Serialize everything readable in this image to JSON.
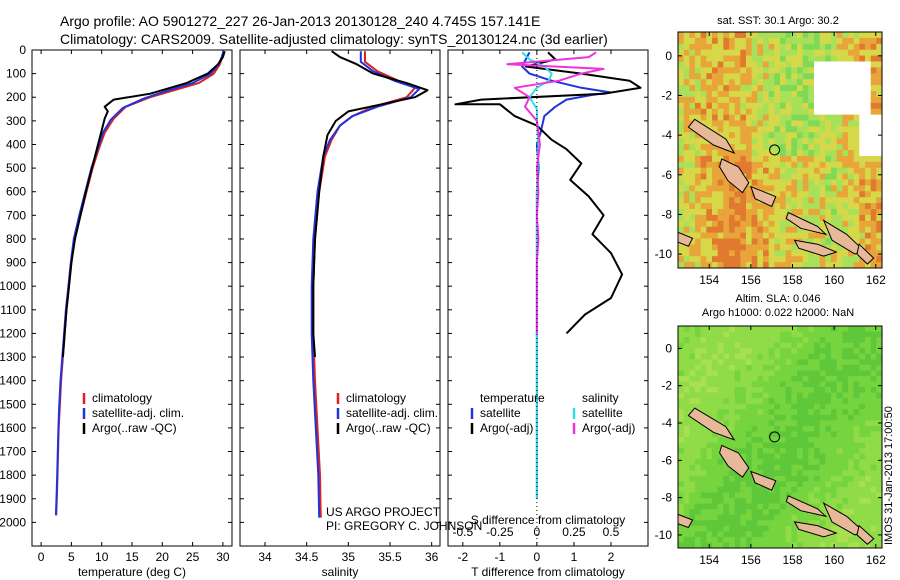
{
  "header": {
    "line1": "Argo profile: AO 5901272_227 26-Jan-2013 20130128_240 4.745S 157.141E",
    "line2": "Climatology: CARS2009. Satellite-adjusted climatology: synTS_20130124.nc (3d earlier)"
  },
  "credits": {
    "line1": "US ARGO PROJECT",
    "line2": "PI: GREGORY C. JOHNSON"
  },
  "timestamp": "IMOS 31-Jan-2013 17:00:50",
  "colors": {
    "climatology": "#dd2222",
    "satellite": "#2233dd",
    "argo": "#000000",
    "sal_satellite": "#33dde8",
    "sal_argo": "#ee33dd",
    "land": "#e8b89a",
    "marker": "#000000"
  },
  "chart_data": [
    {
      "type": "line",
      "id": "temperature",
      "xlabel": "temperature (deg C)",
      "ylabel": "",
      "xlim": [
        -1.5,
        31.5
      ],
      "ylim": [
        2100,
        0
      ],
      "xticks": [
        0,
        5,
        10,
        15,
        20,
        25,
        30
      ],
      "yticks": [
        0,
        100,
        200,
        300,
        400,
        500,
        600,
        700,
        800,
        900,
        1000,
        1100,
        1200,
        1300,
        1400,
        1500,
        1600,
        1700,
        1800,
        1900,
        2000
      ],
      "legend": [
        "climatology",
        "satellite-adj. clim.",
        "Argo(..raw -QC)"
      ],
      "series": [
        {
          "name": "climatology",
          "points": [
            [
              30.2,
              5
            ],
            [
              29.9,
              30
            ],
            [
              29.5,
              60
            ],
            [
              28.5,
              100
            ],
            [
              26,
              140
            ],
            [
              22,
              170
            ],
            [
              18,
              200
            ],
            [
              14,
              240
            ],
            [
              12,
              290
            ],
            [
              10.5,
              350
            ],
            [
              9.5,
              420
            ],
            [
              8.5,
              500
            ],
            [
              7.5,
              600
            ],
            [
              6.5,
              700
            ],
            [
              5.5,
              800
            ],
            [
              5,
              900
            ],
            [
              4.6,
              1000
            ],
            [
              4.2,
              1100
            ],
            [
              3.9,
              1200
            ],
            [
              3.6,
              1300
            ],
            [
              3.3,
              1400
            ],
            [
              3.1,
              1500
            ],
            [
              2.9,
              1600
            ],
            [
              2.8,
              1700
            ],
            [
              2.7,
              1800
            ],
            [
              2.6,
              1900
            ],
            [
              2.5,
              1970
            ]
          ]
        },
        {
          "name": "satellite-adj. clim.",
          "points": [
            [
              30.1,
              5
            ],
            [
              29.8,
              30
            ],
            [
              29.3,
              60
            ],
            [
              28,
              100
            ],
            [
              25,
              140
            ],
            [
              20.5,
              175
            ],
            [
              17,
              205
            ],
            [
              13.5,
              245
            ],
            [
              11.5,
              295
            ],
            [
              10.2,
              350
            ],
            [
              9.3,
              420
            ],
            [
              8.3,
              500
            ],
            [
              7.3,
              600
            ],
            [
              6.3,
              700
            ],
            [
              5.4,
              800
            ],
            [
              4.9,
              900
            ],
            [
              4.5,
              1000
            ],
            [
              4.1,
              1100
            ],
            [
              3.8,
              1200
            ],
            [
              3.5,
              1300
            ],
            [
              3.2,
              1400
            ],
            [
              3,
              1500
            ],
            [
              2.85,
              1600
            ],
            [
              2.75,
              1700
            ],
            [
              2.65,
              1800
            ],
            [
              2.55,
              1900
            ],
            [
              2.45,
              1970
            ]
          ]
        },
        {
          "name": "Argo(..raw -QC)",
          "points": [
            [
              30.3,
              5
            ],
            [
              30,
              30
            ],
            [
              29.2,
              60
            ],
            [
              27.5,
              100
            ],
            [
              24,
              140
            ],
            [
              18,
              185
            ],
            [
              12,
              210
            ],
            [
              10.5,
              240
            ],
            [
              11,
              260
            ],
            [
              10.5,
              290
            ],
            [
              9.8,
              360
            ],
            [
              9.2,
              420
            ],
            [
              8.4,
              500
            ],
            [
              7.4,
              600
            ],
            [
              6.5,
              700
            ],
            [
              5.6,
              800
            ],
            [
              5,
              900
            ],
            [
              4.6,
              1000
            ],
            [
              4.2,
              1100
            ],
            [
              3.9,
              1200
            ],
            [
              3.6,
              1300
            ]
          ]
        }
      ]
    },
    {
      "type": "line",
      "id": "salinity",
      "xlabel": "salinity",
      "ylabel": "",
      "xlim": [
        33.7,
        36.1
      ],
      "ylim": [
        2100,
        0
      ],
      "xticks": [
        34,
        34.5,
        35,
        35.5,
        36
      ],
      "xtick_labels": [
        "34",
        "34.5",
        "35",
        "35.5",
        "36"
      ],
      "legend": [
        "climatology",
        "satellite-adj. clim.",
        "Argo(..raw -QC)"
      ],
      "series": [
        {
          "name": "climatology",
          "points": [
            [
              35.2,
              5
            ],
            [
              35.2,
              50
            ],
            [
              35.35,
              90
            ],
            [
              35.6,
              130
            ],
            [
              35.8,
              160
            ],
            [
              35.7,
              200
            ],
            [
              35.3,
              240
            ],
            [
              35.05,
              280
            ],
            [
              34.9,
              320
            ],
            [
              34.8,
              380
            ],
            [
              34.72,
              450
            ],
            [
              34.65,
              600
            ],
            [
              34.6,
              800
            ],
            [
              34.58,
              1000
            ],
            [
              34.58,
              1200
            ],
            [
              34.6,
              1400
            ],
            [
              34.63,
              1600
            ],
            [
              34.66,
              1800
            ],
            [
              34.67,
              1980
            ]
          ]
        },
        {
          "name": "satellite-adj. clim.",
          "points": [
            [
              35.15,
              5
            ],
            [
              35.15,
              50
            ],
            [
              35.3,
              90
            ],
            [
              35.55,
              130
            ],
            [
              35.85,
              165
            ],
            [
              35.75,
              200
            ],
            [
              35.35,
              240
            ],
            [
              35.05,
              280
            ],
            [
              34.9,
              320
            ],
            [
              34.78,
              380
            ],
            [
              34.7,
              450
            ],
            [
              34.63,
              600
            ],
            [
              34.58,
              800
            ],
            [
              34.56,
              1000
            ],
            [
              34.56,
              1200
            ],
            [
              34.58,
              1400
            ],
            [
              34.61,
              1600
            ],
            [
              34.64,
              1800
            ],
            [
              34.65,
              1980
            ]
          ]
        },
        {
          "name": "Argo(..raw -QC)",
          "points": [
            [
              34.8,
              5
            ],
            [
              34.9,
              30
            ],
            [
              35.1,
              60
            ],
            [
              35.3,
              100
            ],
            [
              35.7,
              140
            ],
            [
              35.95,
              170
            ],
            [
              35.8,
              200
            ],
            [
              35.4,
              230
            ],
            [
              35,
              260
            ],
            [
              34.85,
              300
            ],
            [
              34.75,
              360
            ],
            [
              34.7,
              450
            ],
            [
              34.65,
              600
            ],
            [
              34.6,
              800
            ],
            [
              34.58,
              1000
            ],
            [
              34.58,
              1200
            ],
            [
              34.6,
              1300
            ]
          ]
        }
      ]
    },
    {
      "type": "line",
      "id": "difference",
      "xlabel": "T difference from climatology",
      "xlabel_top": "S difference from climatology",
      "xlim": [
        -2.4,
        3.0
      ],
      "ylim": [
        2100,
        0
      ],
      "xticks": [
        -2,
        -1,
        0,
        1,
        2
      ],
      "xtick_labels": [
        "-2",
        "-1",
        "0",
        "1",
        "2"
      ],
      "sticks": [
        -0.5,
        -0.25,
        0,
        0.25,
        0.5
      ],
      "stick_labels": [
        "-0.5",
        "-0.25",
        "0",
        "0.25",
        "0.5"
      ],
      "s_scale": 4,
      "legend_left_title": "temperature",
      "legend_right_title": "salinity",
      "legend_left": [
        "satellite",
        "Argo(-adj)"
      ],
      "legend_right": [
        "satellite",
        "Argo(-adj)"
      ],
      "series": [
        {
          "name": "T satellite",
          "points": [
            [
              -0.2,
              10
            ],
            [
              -0.3,
              40
            ],
            [
              -0.4,
              70
            ],
            [
              -0.2,
              100
            ],
            [
              0.4,
              130
            ],
            [
              1.2,
              160
            ],
            [
              2,
              180
            ],
            [
              1.5,
              190
            ],
            [
              0.8,
              210
            ],
            [
              0.5,
              240
            ],
            [
              0.2,
              280
            ],
            [
              0.1,
              350
            ],
            [
              0,
              400
            ],
            [
              0.05,
              500
            ],
            [
              0,
              600
            ],
            [
              0,
              800
            ],
            [
              0,
              1000
            ],
            [
              0,
              1200
            ],
            [
              0,
              1400
            ],
            [
              0,
              1600
            ],
            [
              0,
              1800
            ],
            [
              0,
              1900
            ]
          ]
        },
        {
          "name": "T Argo(-adj)",
          "points": [
            [
              0.3,
              10
            ],
            [
              0.5,
              40
            ],
            [
              -0.3,
              70
            ],
            [
              1.2,
              100
            ],
            [
              2.5,
              130
            ],
            [
              2.8,
              160
            ],
            [
              1.8,
              185
            ],
            [
              -1.5,
              210
            ],
            [
              -2.2,
              230
            ],
            [
              -1,
              230
            ],
            [
              -0.6,
              280
            ],
            [
              0,
              320
            ],
            [
              0.4,
              380
            ],
            [
              0.8,
              420
            ],
            [
              1.2,
              480
            ],
            [
              0.9,
              550
            ],
            [
              1.4,
              620
            ],
            [
              1.8,
              700
            ],
            [
              1.5,
              780
            ],
            [
              2,
              860
            ],
            [
              2.3,
              950
            ],
            [
              2,
              1050
            ],
            [
              1.3,
              1120
            ],
            [
              0.8,
              1200
            ]
          ]
        },
        {
          "name": "S satellite",
          "points": [
            [
              -0.1,
              10
            ],
            [
              -0.05,
              40
            ],
            [
              0.05,
              70
            ],
            [
              0.1,
              100
            ],
            [
              0.08,
              130
            ],
            [
              0,
              160
            ],
            [
              -0.05,
              200
            ],
            [
              0,
              250
            ],
            [
              0,
              300
            ],
            [
              0.01,
              400
            ],
            [
              0,
              600
            ],
            [
              0,
              800
            ],
            [
              0,
              1000
            ],
            [
              0,
              1200
            ],
            [
              0,
              1400
            ],
            [
              0,
              1600
            ],
            [
              0,
              1800
            ],
            [
              0,
              1900
            ]
          ]
        },
        {
          "name": "S Argo(-adj)",
          "points": [
            [
              0.4,
              10
            ],
            [
              0.35,
              30
            ],
            [
              -0.2,
              60
            ],
            [
              0.45,
              80
            ],
            [
              0.3,
              100
            ],
            [
              0.15,
              130
            ],
            [
              -0.15,
              160
            ],
            [
              -0.05,
              200
            ],
            [
              -0.08,
              240
            ],
            [
              0,
              300
            ],
            [
              0.02,
              400
            ],
            [
              0,
              500
            ],
            [
              0.01,
              600
            ],
            [
              0,
              700
            ],
            [
              0.01,
              800
            ],
            [
              0,
              900
            ],
            [
              0,
              1000
            ],
            [
              0,
              1100
            ],
            [
              0,
              1200
            ]
          ]
        }
      ]
    },
    {
      "type": "heatmap",
      "id": "sst-map",
      "title": "sat. SST: 30.1  Argo: 30.2",
      "xticks": [
        154,
        156,
        158,
        160,
        162
      ],
      "yticks": [
        0,
        -2,
        -4,
        -6,
        -8,
        -10
      ],
      "xlim": [
        152.5,
        162.3
      ],
      "ylim": [
        -10.7,
        1.2
      ],
      "marker": [
        157.14,
        -4.745
      ]
    },
    {
      "type": "heatmap",
      "id": "sla-map",
      "title_line1": "Altim. SLA: 0.046",
      "title_line2": "Argo h1000: 0.022  h2000: NaN",
      "xticks": [
        154,
        156,
        158,
        160,
        162
      ],
      "yticks": [
        0,
        -2,
        -4,
        -6,
        -8,
        -10
      ],
      "xlim": [
        152.5,
        162.3
      ],
      "ylim": [
        -10.7,
        1.2
      ],
      "marker": [
        157.14,
        -4.745
      ]
    }
  ]
}
